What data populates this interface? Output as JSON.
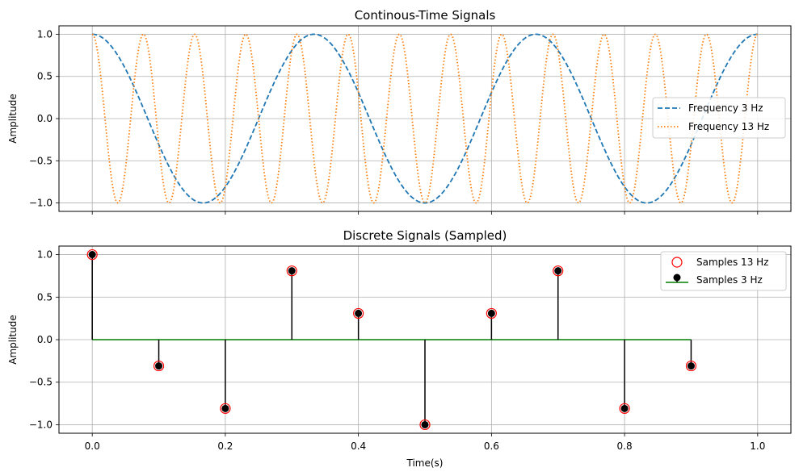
{
  "chart_data": [
    {
      "type": "line",
      "title": "Continous-Time Signals",
      "xlabel": "",
      "ylabel": "Amplitude",
      "xlim": [
        -0.05,
        1.05
      ],
      "ylim": [
        -1.1,
        1.1
      ],
      "yticks": [
        -1.0,
        -0.5,
        0.0,
        0.5,
        1.0
      ],
      "ytick_labels": [
        "−1.0",
        "−0.5",
        "0.0",
        "0.5",
        "1.0"
      ],
      "xticks": [
        0.0,
        0.2,
        0.4,
        0.6,
        0.8,
        1.0
      ],
      "grid": true,
      "legend_position": "center-right",
      "series": [
        {
          "name": "Frequency 3 Hz",
          "function": "cos",
          "frequency_hz": 3,
          "x_range": [
            0,
            1
          ],
          "style": "dashed",
          "color": "#1f77b4"
        },
        {
          "name": "Frequency 13 Hz",
          "function": "cos",
          "frequency_hz": 13,
          "x_range": [
            0,
            1
          ],
          "style": "dotted",
          "color": "#ff7f0e"
        }
      ]
    },
    {
      "type": "scatter",
      "title": "Discrete Signals (Sampled)",
      "xlabel": "Time(s)",
      "ylabel": "Amplitude",
      "xlim": [
        -0.05,
        1.05
      ],
      "ylim": [
        -1.1,
        1.1
      ],
      "yticks": [
        -1.0,
        -0.5,
        0.0,
        0.5,
        1.0
      ],
      "ytick_labels": [
        "−1.0",
        "−0.5",
        "0.0",
        "0.5",
        "1.0"
      ],
      "xticks": [
        0.0,
        0.2,
        0.4,
        0.6,
        0.8,
        1.0
      ],
      "xtick_labels": [
        "0.0",
        "0.2",
        "0.4",
        "0.6",
        "0.8",
        "1.0"
      ],
      "grid": true,
      "legend_position": "top-right",
      "x": [
        0.0,
        0.1,
        0.2,
        0.3,
        0.4,
        0.5,
        0.6,
        0.7,
        0.8,
        0.9
      ],
      "series": [
        {
          "name": "Samples 13 Hz",
          "values": [
            1.0,
            -0.309,
            -0.809,
            0.809,
            0.309,
            -1.0,
            0.309,
            0.809,
            -0.809,
            -0.309
          ],
          "marker": "hollow-circle",
          "color": "#ff0000"
        },
        {
          "name": "Samples 3 Hz",
          "values": [
            1.0,
            -0.309,
            -0.809,
            0.809,
            0.309,
            -1.0,
            0.309,
            0.809,
            -0.809,
            -0.309
          ],
          "marker": "stem",
          "color": "#000000",
          "baseline_color": "#008000"
        }
      ]
    }
  ]
}
